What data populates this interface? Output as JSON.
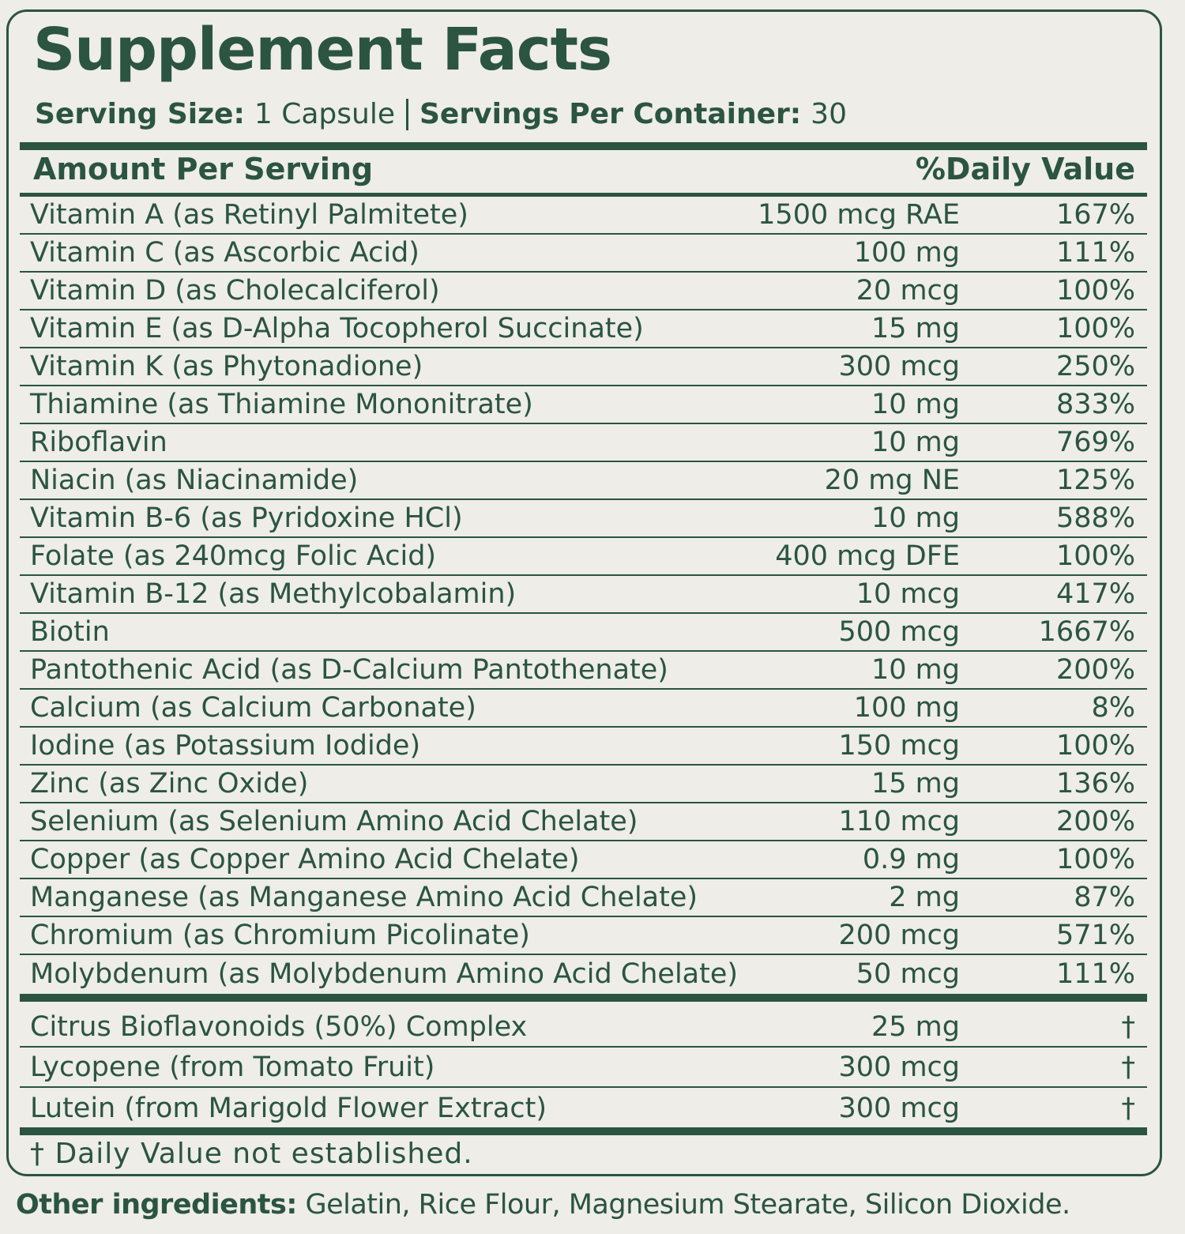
{
  "title": "Supplement Facts",
  "serving": {
    "size_label": "Serving Size:",
    "size": "1 Capsule",
    "per_container_label": "Servings Per Container:",
    "per_container": "30"
  },
  "header": {
    "amount": "Amount Per Serving",
    "daily_value": "%Daily Value"
  },
  "rows": [
    [
      "Vitamin A (as Retinyl Palmitete)",
      "1500 mcg RAE",
      "167%"
    ],
    [
      "Vitamin C (as Ascorbic Acid)",
      "100 mg",
      "111%"
    ],
    [
      "Vitamin D (as Cholecalciferol)",
      "20 mcg",
      "100%"
    ],
    [
      "Vitamin E (as D-Alpha Tocopherol Succinate)",
      "15 mg",
      "100%"
    ],
    [
      "Vitamin K (as Phytonadione)",
      "300 mcg",
      "250%"
    ],
    [
      "Thiamine (as Thiamine Mononitrate)",
      "10 mg",
      "833%"
    ],
    [
      "Riboflavin",
      "10 mg",
      "769%"
    ],
    [
      "Niacin (as Niacinamide)",
      "20 mg NE",
      "125%"
    ],
    [
      "Vitamin B-6 (as Pyridoxine HCl)",
      "10 mg",
      "588%"
    ],
    [
      "Folate (as 240mcg Folic Acid)",
      "400 mcg DFE",
      "100%"
    ],
    [
      "Vitamin B-12 (as Methylcobalamin)",
      "10 mcg",
      "417%"
    ],
    [
      "Biotin",
      "500 mcg",
      "1667%"
    ],
    [
      "Pantothenic Acid (as D-Calcium Pantothenate)",
      "10 mg",
      "200%"
    ],
    [
      "Calcium (as Calcium Carbonate)",
      "100 mg",
      "8%"
    ],
    [
      "Iodine (as Potassium Iodide)",
      "150 mcg",
      "100%"
    ],
    [
      "Zinc (as Zinc Oxide)",
      "15 mg",
      "136%"
    ],
    [
      "Selenium (as Selenium Amino Acid Chelate)",
      "110 mcg",
      "200%"
    ],
    [
      "Copper (as Copper Amino Acid Chelate)",
      "0.9 mg",
      "100%"
    ],
    [
      "Manganese (as Manganese Amino Acid Chelate)",
      "2 mg",
      "87%"
    ],
    [
      "Chromium (as Chromium Picolinate)",
      "200 mcg",
      "571%"
    ],
    [
      "Molybdenum (as Molybdenum Amino Acid Chelate)",
      "50 mcg",
      "111%"
    ]
  ],
  "other_rows": [
    [
      "Citrus Bioflavonoids (50%) Complex",
      "25 mg",
      "†"
    ],
    [
      "Lycopene (from Tomato Fruit)",
      "300 mcg",
      "†"
    ],
    [
      "Lutein (from Marigold Flower Extract)",
      "300 mcg",
      "†"
    ]
  ],
  "footnote": "† Daily Value not established.",
  "other_ingredients": {
    "label": "Other ingredients:",
    "text": "Gelatin, Rice Flour, Magnesium Stearate, Silicon Dioxide."
  }
}
